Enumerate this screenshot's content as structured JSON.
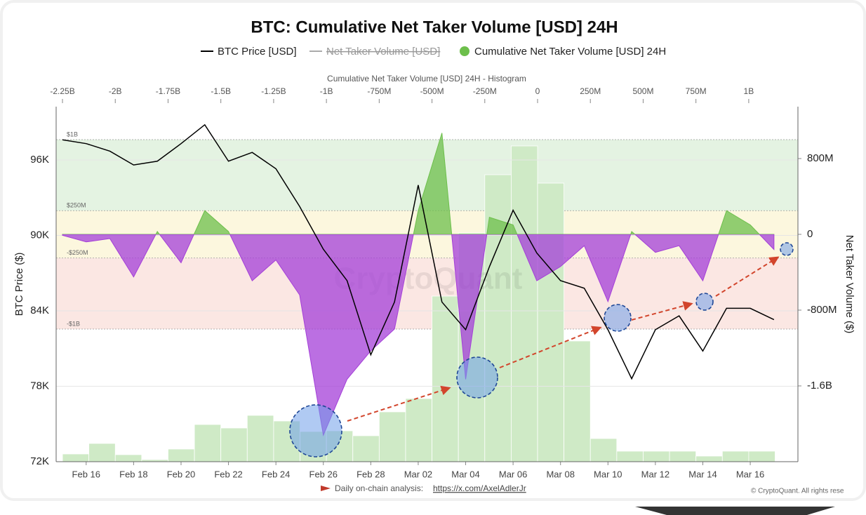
{
  "chart_data": {
    "type": "line",
    "title": "BTC: Cumulative Net Taker Volume [USD] 24H",
    "ylabel": "BTC Price ($)",
    "y2label": "Net Taker Volume ($)",
    "x": [
      "Feb 15",
      "Feb 16",
      "Feb 17",
      "Feb 18",
      "Feb 19",
      "Feb 20",
      "Feb 21",
      "Feb 22",
      "Feb 23",
      "Feb 24",
      "Feb 25",
      "Feb 26",
      "Feb 27",
      "Feb 28",
      "Mar 01",
      "Mar 02",
      "Mar 03",
      "Mar 04",
      "Mar 05",
      "Mar 06",
      "Mar 07",
      "Mar 08",
      "Mar 09",
      "Mar 10",
      "Mar 11",
      "Mar 12",
      "Mar 13",
      "Mar 14",
      "Mar 15",
      "Mar 16",
      "Mar 17"
    ],
    "xticks": [
      "Feb 16",
      "Feb 18",
      "Feb 20",
      "Feb 22",
      "Feb 24",
      "Feb 26",
      "Feb 28",
      "Mar 02",
      "Mar 04",
      "Mar 06",
      "Mar 08",
      "Mar 10",
      "Mar 12",
      "Mar 14",
      "Mar 16"
    ],
    "ylim": [
      72000,
      100240
    ],
    "yticks": [
      {
        "value": 72000,
        "label": "72K"
      },
      {
        "value": 78000,
        "label": "78K"
      },
      {
        "value": 84000,
        "label": "84K"
      },
      {
        "value": 90000,
        "label": "90K"
      },
      {
        "value": 96000,
        "label": "96K"
      }
    ],
    "y2lim": [
      -2400000000,
      1348000000
    ],
    "y2ticks": [
      {
        "value": -1600000000,
        "label": "-1.6B"
      },
      {
        "value": -800000000,
        "label": "-800M"
      },
      0,
      {
        "value": 800000000,
        "label": "800M"
      }
    ],
    "grid": true,
    "series": [
      {
        "name": "BTC Price [USD]",
        "color": "#000000",
        "values": [
          97600,
          97300,
          96700,
          95600,
          95900,
          97300,
          98800,
          95900,
          96600,
          95300,
          92300,
          88900,
          86400,
          80500,
          84700,
          94000,
          84700,
          82500,
          87500,
          92000,
          88600,
          86400,
          85800,
          82500,
          78600,
          82500,
          83600,
          80800,
          84200,
          84200,
          83300
        ]
      },
      {
        "name": "Net Taker Volume [USD]",
        "color": "#999999",
        "visible": false
      },
      {
        "name": "Cumulative Net Taker Volume [USD] 24H",
        "type": "area",
        "axis": "y2",
        "color": "#6dbf4b",
        "negative_color": "#a43fd8",
        "values": [
          -10000000,
          -80000000,
          -45000000,
          -450000000,
          30000000,
          -300000000,
          250000000,
          30000000,
          -490000000,
          -270000000,
          -640000000,
          -2120000000,
          -1530000000,
          -1230000000,
          -1000000000,
          250000000,
          1070000000,
          -1530000000,
          180000000,
          100000000,
          -490000000,
          -340000000,
          -120000000,
          -710000000,
          30000000,
          -190000000,
          -120000000,
          -490000000,
          250000000,
          100000000,
          -160000000
        ]
      }
    ],
    "thresholds": [
      {
        "value": 1000000000,
        "label": "$1B"
      },
      {
        "value": 250000000,
        "label": "$250M"
      },
      {
        "value": -250000000,
        "label": "-$250M"
      },
      {
        "value": -1000000000,
        "label": "-$1B"
      }
    ],
    "band_colors": [
      "#e4f3e2",
      "#fcf7de",
      "#fbe7e3"
    ],
    "histogram": {
      "title": "Cumulative Net Taker Volume [USD] 24H - Histogram",
      "color": "#cfeac6",
      "xlim": [
        -2280000000,
        1233000000
      ],
      "xticks": [
        {
          "value": -2250000000,
          "label": "-2.25B"
        },
        {
          "value": -2000000000,
          "label": "-2B"
        },
        {
          "value": -1750000000,
          "label": "-1.75B"
        },
        {
          "value": -1500000000,
          "label": "-1.5B"
        },
        {
          "value": -1250000000,
          "label": "-1.25B"
        },
        {
          "value": -1000000000,
          "label": "-1B"
        },
        {
          "value": -750000000,
          "label": "-750M"
        },
        {
          "value": -500000000,
          "label": "-500M"
        },
        {
          "value": -250000000,
          "label": "-250M"
        },
        0,
        {
          "value": 250000000,
          "label": "250M"
        },
        {
          "value": 500000000,
          "label": "500M"
        },
        {
          "value": 750000000,
          "label": "750M"
        },
        {
          "value": 1000000000,
          "label": "1B"
        }
      ],
      "bins": [
        -2250000000,
        -2125000000,
        -2000000000,
        -1875000000,
        -1750000000,
        -1625000000,
        -1500000000,
        -1375000000,
        -1250000000,
        -1125000000,
        -1000000000,
        -875000000,
        -750000000,
        -625000000,
        -500000000,
        -375000000,
        -250000000,
        -125000000,
        0,
        125000000,
        250000000,
        375000000,
        500000000,
        625000000,
        750000000,
        875000000,
        1000000000,
        1125000000
      ],
      "counts": [
        11,
        26,
        10,
        3,
        18,
        53,
        48,
        66,
        58,
        43,
        44,
        37,
        71,
        90,
        236,
        326,
        409,
        450,
        397,
        172,
        33,
        15,
        15,
        15,
        8,
        15,
        15
      ]
    },
    "watermark": "CryptoQuant",
    "footer": {
      "text": "Daily on-chain analysis:",
      "link": "https://x.com/AxelAdlerJr",
      "copyright": "© CryptoQuant. All rights rese"
    }
  }
}
